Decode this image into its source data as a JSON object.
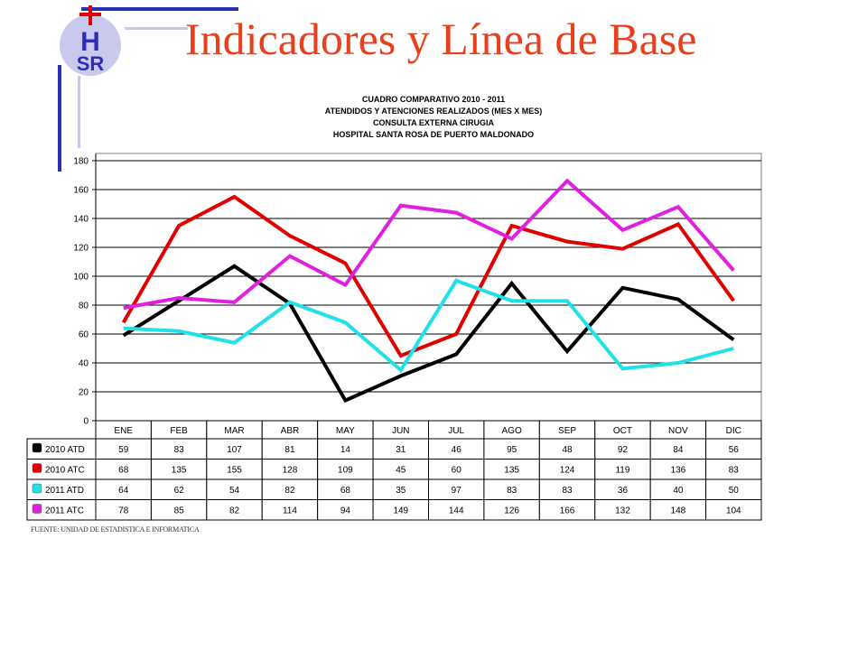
{
  "slide": {
    "title": "Indicadores y Línea de Base",
    "source": "FUENTE: UNIDAD DE ESTADISTICA E INFORMATICA",
    "logo_text": "HSR"
  },
  "colors": {
    "title": "#e8401c",
    "decoration": "#2b2fb8",
    "series_2010_atd": "#000000",
    "series_2010_atc": "#e00000",
    "series_2011_atd": "#20e0e8",
    "series_2011_atc": "#e020e0"
  },
  "chart_data": {
    "type": "line",
    "title_lines": [
      "CUADRO COMPARATIVO 2010 - 2011",
      "ATENDIDOS Y ATENCIONES  REALIZADOS (MES X MES)",
      "CONSULTA  EXTERNA CIRUGIA",
      "HOSPITAL  SANTA ROSA DE PUERTO MALDONADO"
    ],
    "categories": [
      "ENE",
      "FEB",
      "MAR",
      "ABR",
      "MAY",
      "JUN",
      "JUL",
      "AGO",
      "SEP",
      "OCT",
      "NOV",
      "DIC"
    ],
    "ylim": [
      0,
      180
    ],
    "yticks": [
      "0",
      "20",
      "40",
      "60",
      "80",
      "100",
      "120",
      "140",
      "160",
      "180"
    ],
    "grid": true,
    "legend": "table-below",
    "series": [
      {
        "name": "2010 ATD",
        "color": "#000000",
        "values": [
          59,
          83,
          107,
          81,
          14,
          31,
          46,
          95,
          48,
          92,
          84,
          56
        ]
      },
      {
        "name": "2010 ATC",
        "color": "#e00000",
        "values": [
          68,
          135,
          155,
          128,
          109,
          45,
          60,
          135,
          124,
          119,
          136,
          83
        ]
      },
      {
        "name": "2011 ATD",
        "color": "#20e0e8",
        "values": [
          64,
          62,
          54,
          82,
          68,
          35,
          97,
          83,
          83,
          36,
          40,
          50
        ]
      },
      {
        "name": "2011 ATC",
        "color": "#e020e0",
        "values": [
          78,
          85,
          82,
          114,
          94,
          149,
          144,
          126,
          166,
          132,
          148,
          104
        ]
      }
    ]
  }
}
